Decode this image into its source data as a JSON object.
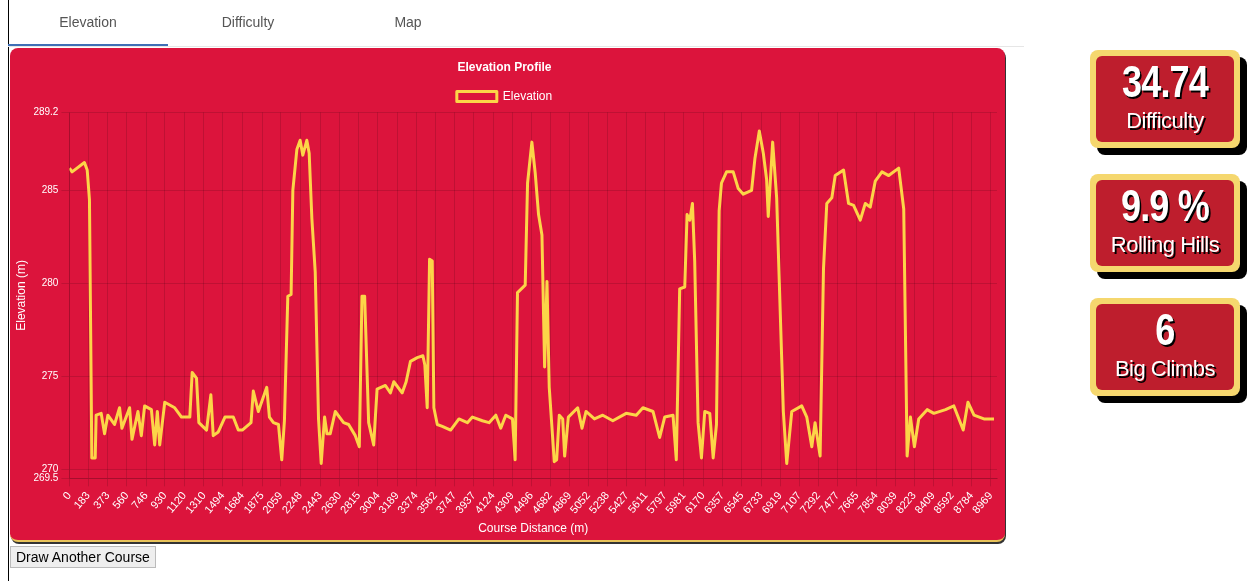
{
  "chart_data": [
    {
      "type": "line",
      "title": "Elevation Profile",
      "xlabel": "Course Distance (m)",
      "ylabel": "Elevation (m)",
      "legend": "top",
      "grid": true,
      "marker": "none",
      "x": [
        0,
        26,
        146,
        173,
        195,
        218,
        251,
        260,
        309,
        342,
        374,
        439,
        488,
        511,
        586,
        609,
        667,
        700,
        732,
        798,
        830,
        856,
        879,
        928,
        1025,
        1091,
        1172,
        1195,
        1237,
        1260,
        1335,
        1377,
        1400,
        1449,
        1514,
        1595,
        1644,
        1683,
        1768,
        1790,
        1839,
        1921,
        1947,
        1986,
        2035,
        2067,
        2093,
        2126,
        2158,
        2175,
        2214,
        2246,
        2272,
        2311,
        2334,
        2360,
        2393,
        2425,
        2451,
        2484,
        2507,
        2539,
        2588,
        2669,
        2718,
        2783,
        2822,
        2848,
        2874,
        2913,
        2962,
        2995,
        3076,
        3125,
        3158,
        3239,
        3278,
        3320,
        3386,
        3441,
        3460,
        3483,
        3506,
        3532,
        3548,
        3581,
        3630,
        3711,
        3792,
        3874,
        3923,
        4020,
        4085,
        4151,
        4199,
        4248,
        4313,
        4339,
        4362,
        4437,
        4460,
        4502,
        4535,
        4567,
        4600,
        4626,
        4649,
        4671,
        4720,
        4743,
        4769,
        4802,
        4821,
        4857,
        4948,
        4990,
        5029,
        5111,
        5192,
        5290,
        5420,
        5518,
        5583,
        5681,
        5746,
        5795,
        5876,
        5908,
        5941,
        5990,
        6013,
        6039,
        6065,
        6087,
        6120,
        6153,
        6185,
        6234,
        6267,
        6299,
        6325,
        6348,
        6397,
        6462,
        6511,
        6560,
        6641,
        6673,
        6716,
        6755,
        6787,
        6803,
        6846,
        6885,
        6950,
        6983,
        7032,
        7129,
        7178,
        7227,
        7259,
        7308,
        7341,
        7373,
        7422,
        7455,
        7536,
        7585,
        7634,
        7699,
        7748,
        7796,
        7845,
        7910,
        7976,
        8073,
        8122,
        8155,
        8187,
        8226,
        8268,
        8350,
        8415,
        8529,
        8610,
        8701,
        8747,
        8806,
        8903,
        9001
      ],
      "series": [
        {
          "name": "Elevation",
          "color": "#fcd548",
          "values": [
            286.2,
            286.0,
            286.5,
            286.1,
            284.5,
            270.6,
            270.6,
            272.9,
            273.0,
            271.9,
            272.9,
            272.4,
            273.3,
            272.2,
            273.3,
            271.6,
            273.1,
            271.8,
            273.4,
            273.2,
            271.3,
            273.1,
            271.3,
            273.6,
            273.3,
            272.8,
            272.8,
            275.2,
            274.9,
            272.5,
            272.1,
            274.0,
            271.8,
            272.0,
            272.8,
            272.8,
            272.1,
            272.1,
            272.5,
            274.2,
            273.1,
            274.4,
            272.8,
            272.5,
            272.4,
            270.5,
            272.6,
            279.3,
            279.4,
            285.0,
            287.2,
            287.7,
            286.9,
            287.7,
            287.0,
            283.5,
            280.6,
            272.7,
            270.3,
            272.8,
            271.9,
            271.9,
            273.1,
            272.5,
            272.4,
            271.8,
            271.2,
            279.3,
            279.3,
            272.5,
            271.3,
            274.3,
            274.5,
            274.1,
            274.7,
            274.1,
            274.7,
            275.8,
            276.0,
            276.1,
            275.6,
            273.3,
            281.3,
            281.2,
            273.3,
            272.4,
            272.3,
            272.1,
            272.7,
            272.5,
            272.8,
            272.6,
            272.5,
            272.9,
            272.2,
            272.9,
            272.7,
            270.5,
            279.5,
            279.9,
            285.4,
            287.6,
            285.9,
            283.7,
            282.6,
            275.5,
            280.1,
            274.4,
            270.4,
            270.5,
            272.9,
            272.7,
            270.7,
            272.8,
            273.3,
            272.2,
            273.1,
            272.7,
            272.9,
            272.6,
            273.0,
            272.9,
            273.3,
            273.1,
            271.7,
            272.8,
            272.9,
            270.5,
            279.7,
            279.8,
            283.7,
            283.4,
            284.3,
            281.2,
            272.5,
            270.6,
            273.1,
            273.0,
            270.6,
            272.4,
            283.9,
            285.4,
            286.0,
            286.0,
            285.1,
            284.8,
            285.0,
            286.7,
            288.2,
            287.0,
            285.6,
            283.6,
            287.6,
            284.6,
            273.1,
            270.3,
            273.1,
            273.4,
            272.8,
            271.2,
            272.5,
            270.7,
            280.8,
            284.3,
            284.6,
            285.8,
            286.1,
            284.3,
            284.2,
            283.4,
            284.3,
            284.1,
            285.5,
            286.0,
            285.8,
            286.2,
            284.0,
            270.7,
            272.8,
            271.2,
            272.7,
            273.2,
            273.0,
            273.2,
            273.4,
            272.1,
            273.6,
            272.9,
            272.7,
            272.7
          ]
        }
      ],
      "xlim": [
        0,
        9030
      ],
      "xticks": [
        0,
        183,
        373,
        560,
        746,
        930,
        1120,
        1310,
        1494,
        1684,
        1875,
        2059,
        2248,
        2443,
        2630,
        2815,
        3004,
        3189,
        3374,
        3562,
        3747,
        3937,
        4124,
        4309,
        4496,
        4682,
        4869,
        5052,
        5238,
        5427,
        5611,
        5797,
        5981,
        6170,
        6357,
        6545,
        6733,
        6919,
        7107,
        7292,
        7477,
        7665,
        7854,
        8039,
        8223,
        8409,
        8592,
        8784,
        8969
      ],
      "ylim": [
        269.5,
        289.2
      ],
      "yticks": [
        269.5,
        270,
        275,
        280,
        285,
        289.2
      ]
    },
    {
      "type": "other",
      "annotations": [
        "34.74",
        "Difficulty",
        "9.9 %",
        "Rolling Hills",
        "6",
        "Big Climbs"
      ]
    },
    {
      "type": "other",
      "annotations": [
        "Elevation",
        "Difficulty",
        "Map"
      ]
    },
    {
      "type": "other",
      "annotations": [
        "Draw Another Course"
      ]
    }
  ]
}
